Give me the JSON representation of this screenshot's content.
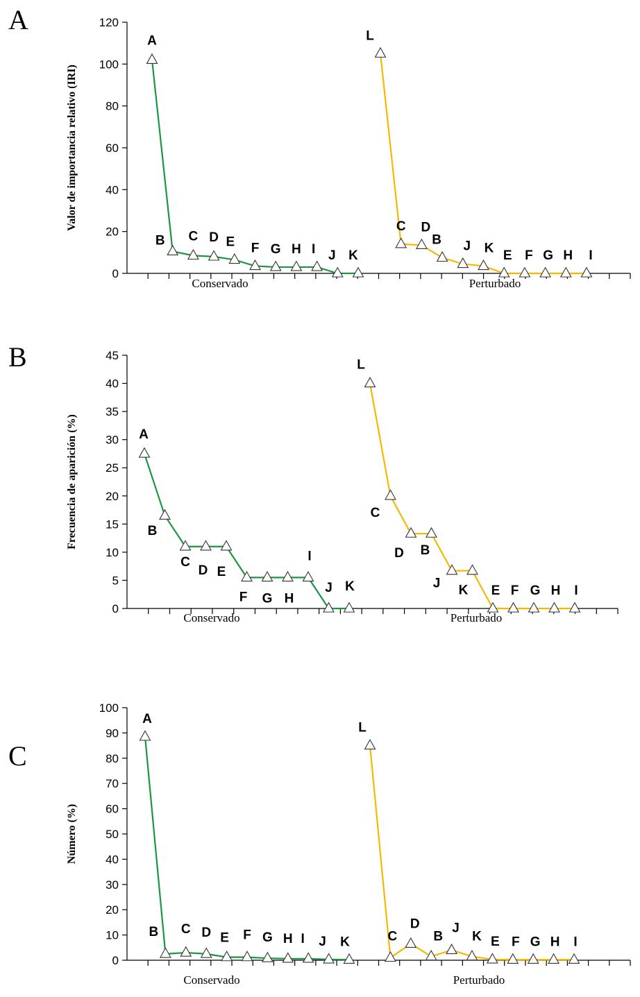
{
  "chart_data": [
    {
      "type": "line",
      "panel_label": "A",
      "ylabel": "Valor de importancia relativo (IRI)",
      "ylim": [
        0,
        120
      ],
      "yticks": [
        0,
        20,
        40,
        60,
        80,
        100,
        120
      ],
      "groups": [
        "Conservado",
        "Perturbado"
      ],
      "series": [
        {
          "name": "Conservado",
          "color": "#1a9641",
          "categories": [
            "A",
            "B",
            "C",
            "D",
            "E",
            "F",
            "G",
            "H",
            "I",
            "J",
            "K"
          ],
          "values": [
            102,
            10.5,
            8.5,
            8,
            6.5,
            3.5,
            3,
            3,
            3,
            0,
            0
          ]
        },
        {
          "name": "Perturbado",
          "color": "#f5b800",
          "categories": [
            "L",
            "C",
            "D",
            "B",
            "J",
            "K",
            "E",
            "F",
            "G",
            "H",
            "I"
          ],
          "values": [
            105,
            14,
            13.5,
            7.5,
            4.5,
            3.5,
            0,
            0,
            0,
            0,
            0
          ]
        }
      ]
    },
    {
      "type": "line",
      "panel_label": "B",
      "ylabel": "Frecuencia de aparición  (%)",
      "ylim": [
        0,
        45
      ],
      "yticks": [
        0,
        5,
        10,
        15,
        20,
        25,
        30,
        35,
        40,
        45
      ],
      "groups": [
        "Conservado",
        "Perturbado"
      ],
      "series": [
        {
          "name": "Conservado",
          "color": "#1a9641",
          "categories": [
            "A",
            "B",
            "C",
            "D",
            "E",
            "F",
            "G",
            "H",
            "I",
            "J",
            "K"
          ],
          "values": [
            27.5,
            16.5,
            11,
            11,
            11,
            5.5,
            5.5,
            5.5,
            5.5,
            0,
            0
          ]
        },
        {
          "name": "Perturbado",
          "color": "#f5b800",
          "categories": [
            "L",
            "C",
            "D",
            "B",
            "J",
            "K",
            "E",
            "F",
            "G",
            "H",
            "I"
          ],
          "values": [
            40,
            20,
            13.3,
            13.3,
            6.7,
            6.7,
            0,
            0,
            0,
            0,
            0
          ]
        }
      ]
    },
    {
      "type": "line",
      "panel_label": "C",
      "ylabel": "Número  (%)",
      "ylim": [
        0,
        100
      ],
      "yticks": [
        0,
        10,
        20,
        30,
        40,
        50,
        60,
        70,
        80,
        90,
        100
      ],
      "groups": [
        "Conservado",
        "Perturbado"
      ],
      "series": [
        {
          "name": "Conservado",
          "color": "#1a9641",
          "categories": [
            "A",
            "B",
            "C",
            "D",
            "E",
            "F",
            "G",
            "H",
            "I",
            "J",
            "K"
          ],
          "values": [
            88.5,
            2.5,
            3,
            2.5,
            1.2,
            1.2,
            0.8,
            0.6,
            0.6,
            0.3,
            0.2
          ]
        },
        {
          "name": "Perturbado",
          "color": "#f5b800",
          "categories": [
            "L",
            "C",
            "D",
            "B",
            "J",
            "K",
            "E",
            "F",
            "G",
            "H",
            "I"
          ],
          "values": [
            85,
            1,
            6.5,
            1.5,
            4,
            1.5,
            0.3,
            0.2,
            0.2,
            0.2,
            0.2
          ]
        }
      ]
    }
  ]
}
